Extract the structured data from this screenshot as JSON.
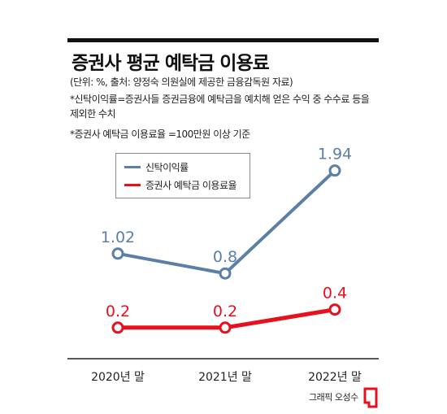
{
  "header": {
    "title": "증권사 평균 예탁금 이용료",
    "subtitle": "(단위: %, 출처: 양정숙 의원실에 제공한 금융감독원 자료)",
    "note1": "*신탁이익률=증권사들 증권금융에 예탁금을 예치해 얻은 수익 중 수수료 등을 제외한 수치",
    "note2": "*증권사 예탁금 이용료율 =100만원 이상 기준"
  },
  "credit": "그래픽 오성수",
  "colors": {
    "trust": "#5b7fa6",
    "deposit": "#e8101c",
    "text": "#222222"
  },
  "chart_data": {
    "type": "line",
    "categories": [
      "2020년 말",
      "2021년 말",
      "2022년 말"
    ],
    "series": [
      {
        "name": "신탁이익률",
        "values": [
          1.02,
          0.8,
          1.94
        ],
        "labels": [
          "1.02",
          "0.8",
          "1.94"
        ],
        "color": "#5b7fa6"
      },
      {
        "name": "증권사 예탁금 이용료율",
        "values": [
          0.2,
          0.2,
          0.4
        ],
        "labels": [
          "0.2",
          "0.2",
          "0.4"
        ],
        "color": "#e8101c"
      }
    ],
    "ylim": [
      0,
      2.2
    ],
    "grid": false,
    "legend": "top-left"
  }
}
